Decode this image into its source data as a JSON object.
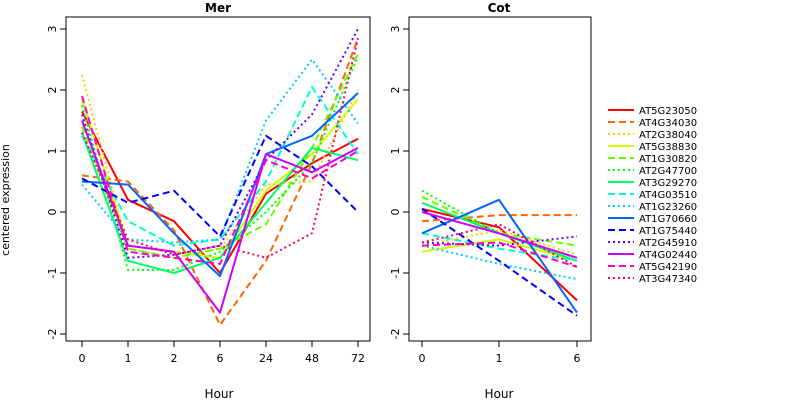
{
  "chart_data": [
    {
      "type": "line",
      "title": "Mer",
      "xlabel": "Hour",
      "ylabel": "centered expression",
      "categories": [
        "0",
        "1",
        "2",
        "6",
        "24",
        "48",
        "72"
      ],
      "ylim": [
        -2,
        3
      ],
      "yticks": [
        "-2",
        "-1",
        "0",
        "1",
        "2",
        "3"
      ],
      "series": [
        {
          "name": "AT5G23050",
          "color": "#FF0000",
          "dash": "solid",
          "values": [
            1.65,
            0.2,
            -0.15,
            -1.0,
            0.3,
            0.8,
            1.2
          ]
        },
        {
          "name": "AT4G34030",
          "color": "#FF6600",
          "dash": "dashed",
          "values": [
            0.6,
            0.5,
            -0.3,
            -1.85,
            -0.8,
            0.8,
            2.85
          ]
        },
        {
          "name": "AT2G38040",
          "color": "#FFCC00",
          "dash": "dotted",
          "values": [
            2.25,
            -0.6,
            -0.75,
            -0.6,
            0.45,
            0.5,
            2.0
          ]
        },
        {
          "name": "AT5G38830",
          "color": "#CCFF00",
          "dash": "solid",
          "values": [
            1.85,
            -0.55,
            -0.65,
            -0.75,
            0.35,
            0.95,
            1.85
          ]
        },
        {
          "name": "AT1G30820",
          "color": "#66FF00",
          "dash": "dashed",
          "values": [
            1.4,
            -0.6,
            -0.75,
            -0.6,
            -0.2,
            1.05,
            2.6
          ]
        },
        {
          "name": "AT2G47700",
          "color": "#00FF00",
          "dash": "dotted",
          "values": [
            1.75,
            -0.95,
            -0.95,
            -0.65,
            0.0,
            0.8,
            2.55
          ]
        },
        {
          "name": "AT3G29270",
          "color": "#00FF66",
          "dash": "solid",
          "values": [
            1.3,
            -0.8,
            -1.0,
            -0.75,
            0.15,
            1.05,
            0.85
          ]
        },
        {
          "name": "AT4G03510",
          "color": "#00FFCC",
          "dash": "dashed",
          "values": [
            1.25,
            -0.15,
            -0.55,
            -0.45,
            0.5,
            2.05,
            0.95
          ]
        },
        {
          "name": "AT1G23260",
          "color": "#00CCFF",
          "dash": "dotted",
          "values": [
            0.45,
            -0.45,
            -0.5,
            -0.45,
            1.5,
            2.5,
            1.45
          ]
        },
        {
          "name": "AT1G70660",
          "color": "#0066FF",
          "dash": "solid",
          "values": [
            0.5,
            0.45,
            -0.35,
            -1.05,
            0.95,
            1.25,
            1.95
          ]
        },
        {
          "name": "AT1G75440",
          "color": "#0000FF",
          "dash": "dashed",
          "values": [
            0.55,
            0.15,
            0.35,
            -0.4,
            1.25,
            0.75,
            0.0
          ]
        },
        {
          "name": "AT2G45910",
          "color": "#6600FF",
          "dash": "dotted",
          "values": [
            1.6,
            -0.75,
            -0.7,
            -0.55,
            0.85,
            1.6,
            3.0
          ]
        },
        {
          "name": "AT4G02440",
          "color": "#CC00FF",
          "dash": "solid",
          "values": [
            1.5,
            -0.55,
            -0.65,
            -1.65,
            0.95,
            0.65,
            1.05
          ]
        },
        {
          "name": "AT5G42190",
          "color": "#FF00CC",
          "dash": "dashed",
          "values": [
            1.9,
            -0.65,
            -0.75,
            -0.85,
            0.85,
            0.55,
            1.0
          ]
        },
        {
          "name": "AT3G47340",
          "color": "#FF0066",
          "dash": "dotted",
          "values": [
            1.3,
            -0.45,
            -0.7,
            -0.55,
            -0.75,
            -0.35,
            2.85
          ]
        }
      ]
    },
    {
      "type": "line",
      "title": "Cot",
      "xlabel": "Hour",
      "ylabel": "",
      "categories": [
        "0",
        "1",
        "6"
      ],
      "ylim": [
        -2,
        3
      ],
      "yticks": [
        "-2",
        "-1",
        "0",
        "1",
        "2",
        "3"
      ],
      "series": [
        {
          "name": "AT5G23050",
          "color": "#FF0000",
          "dash": "solid",
          "values": [
            0.05,
            -0.25,
            -1.45
          ]
        },
        {
          "name": "AT4G34030",
          "color": "#FF6600",
          "dash": "dashed",
          "values": [
            -0.15,
            -0.05,
            -0.05
          ]
        },
        {
          "name": "AT2G38040",
          "color": "#FFCC00",
          "dash": "dotted",
          "values": [
            -0.55,
            -0.3,
            -0.7
          ]
        },
        {
          "name": "AT5G38830",
          "color": "#CCFF00",
          "dash": "solid",
          "values": [
            -0.65,
            -0.45,
            -0.8
          ]
        },
        {
          "name": "AT1G30820",
          "color": "#66FF00",
          "dash": "dashed",
          "values": [
            0.25,
            -0.35,
            -0.55
          ]
        },
        {
          "name": "AT2G47700",
          "color": "#00FF00",
          "dash": "dotted",
          "values": [
            0.35,
            -0.35,
            -0.75
          ]
        },
        {
          "name": "AT3G29270",
          "color": "#00FF66",
          "dash": "solid",
          "values": [
            0.15,
            -0.35,
            -0.8
          ]
        },
        {
          "name": "AT4G03510",
          "color": "#00FFCC",
          "dash": "dashed",
          "values": [
            -0.35,
            -0.6,
            -0.8
          ]
        },
        {
          "name": "AT1G23260",
          "color": "#00CCFF",
          "dash": "dotted",
          "values": [
            -0.55,
            -0.85,
            -1.1
          ]
        },
        {
          "name": "AT1G70660",
          "color": "#0066FF",
          "dash": "solid",
          "values": [
            -0.35,
            0.2,
            -1.65
          ]
        },
        {
          "name": "AT1G75440",
          "color": "#0000FF",
          "dash": "dashed",
          "values": [
            0.05,
            -0.8,
            -1.7
          ]
        },
        {
          "name": "AT2G45910",
          "color": "#6600FF",
          "dash": "dotted",
          "values": [
            -0.5,
            -0.55,
            -0.4
          ]
        },
        {
          "name": "AT4G02440",
          "color": "#CC00FF",
          "dash": "solid",
          "values": [
            0.0,
            -0.35,
            -0.75
          ]
        },
        {
          "name": "AT5G42190",
          "color": "#FF00CC",
          "dash": "dashed",
          "values": [
            -0.55,
            -0.5,
            -0.9
          ]
        },
        {
          "name": "AT3G47340",
          "color": "#FF0066",
          "dash": "dotted",
          "values": [
            -0.5,
            -0.2,
            -0.9
          ]
        }
      ]
    }
  ]
}
